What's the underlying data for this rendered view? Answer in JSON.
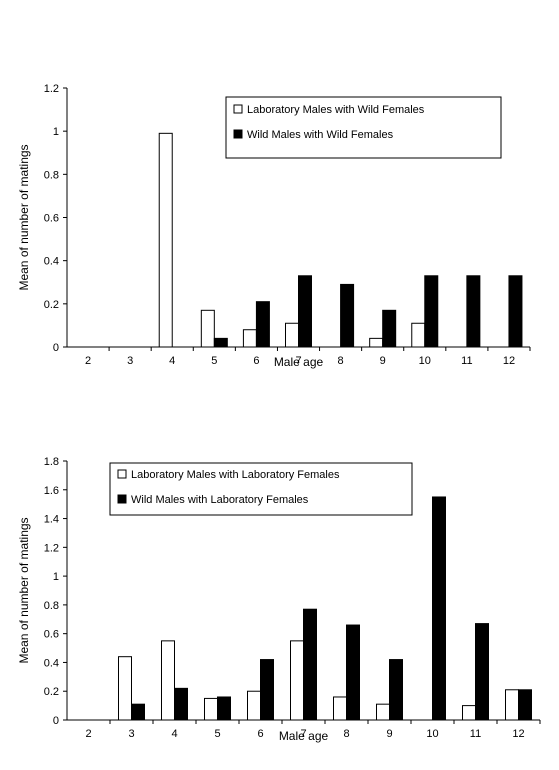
{
  "chart_data": [
    {
      "type": "bar",
      "title": "",
      "xlabel": "Male age",
      "ylabel": "Mean of number of matings",
      "categories": [
        "2",
        "3",
        "4",
        "5",
        "6",
        "7",
        "8",
        "9",
        "10",
        "11",
        "12"
      ],
      "ylim": [
        0,
        1.2
      ],
      "yticks": [
        "0",
        "0.2",
        "0.4",
        "0.6",
        "0.8",
        "1",
        "1.2"
      ],
      "grid": false,
      "legend_position": "top-right",
      "series": [
        {
          "name": "Laboratory Males with Wild Females",
          "color": "#ffffff",
          "values": [
            0,
            0,
            0.99,
            0.17,
            0.08,
            0.11,
            0,
            0.04,
            0.11,
            0,
            0
          ]
        },
        {
          "name": "Wild Males with Wild Females",
          "color": "#000000",
          "values": [
            0,
            0,
            0,
            0.04,
            0.21,
            0.33,
            0.29,
            0.17,
            0.33,
            0.33,
            0.33
          ]
        }
      ]
    },
    {
      "type": "bar",
      "title": "",
      "xlabel": "Male age",
      "ylabel": "Mean of number of matings",
      "categories": [
        "2",
        "3",
        "4",
        "5",
        "6",
        "7",
        "8",
        "9",
        "10",
        "11",
        "12"
      ],
      "ylim": [
        0,
        1.8
      ],
      "yticks": [
        "0",
        "0.2",
        "0.4",
        "0.6",
        "0.8",
        "1",
        "1.2",
        "1.4",
        "1.6",
        "1.8"
      ],
      "grid": false,
      "legend_position": "top",
      "series": [
        {
          "name": "Laboratory Males with Laboratory Females",
          "color": "#ffffff",
          "values": [
            0,
            0.44,
            0.55,
            0.15,
            0.2,
            0.55,
            0.16,
            0.11,
            0,
            0.1,
            0.21
          ]
        },
        {
          "name": "Wild Males with Laboratory Females",
          "color": "#000000",
          "values": [
            0,
            0.11,
            0.22,
            0.16,
            0.42,
            0.77,
            0.66,
            0.42,
            1.55,
            0.67,
            0.21
          ]
        }
      ]
    }
  ]
}
